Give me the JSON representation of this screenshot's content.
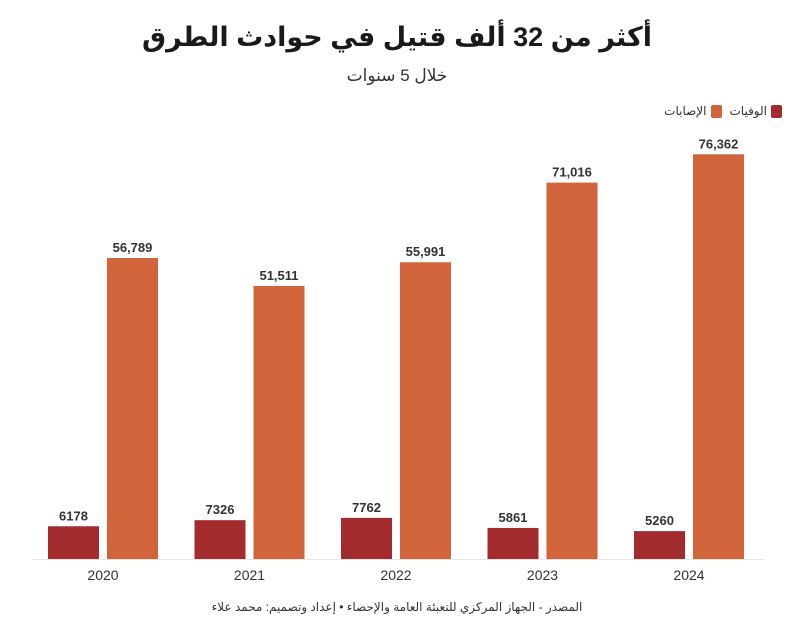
{
  "chart_data": {
    "type": "bar",
    "title": "أكثر من 32 ألف قتيل في حوادث الطرق",
    "subtitle": "خلال 5 سنوات",
    "categories": [
      "2020",
      "2021",
      "2022",
      "2023",
      "2024"
    ],
    "series": [
      {
        "name": "الوفيات",
        "color": "#a32b2e",
        "values": [
          6178,
          7326,
          7762,
          5861,
          5260
        ],
        "labels": [
          "6178",
          "7326",
          "7762",
          "5861",
          "5260"
        ]
      },
      {
        "name": "الإصابات",
        "color": "#d2643b",
        "values": [
          56789,
          51511,
          55991,
          71016,
          76362
        ],
        "labels": [
          "56,789",
          "51,511",
          "55,991",
          "71,016",
          "76,362"
        ]
      }
    ],
    "ylim": [
      0,
      80000
    ],
    "grid": false,
    "legend_position": "top-right",
    "source": "المصدر - الجهاز المركزي للتعبئة العامة والإحصاء • إعداد وتصميم: محمد علاء"
  }
}
